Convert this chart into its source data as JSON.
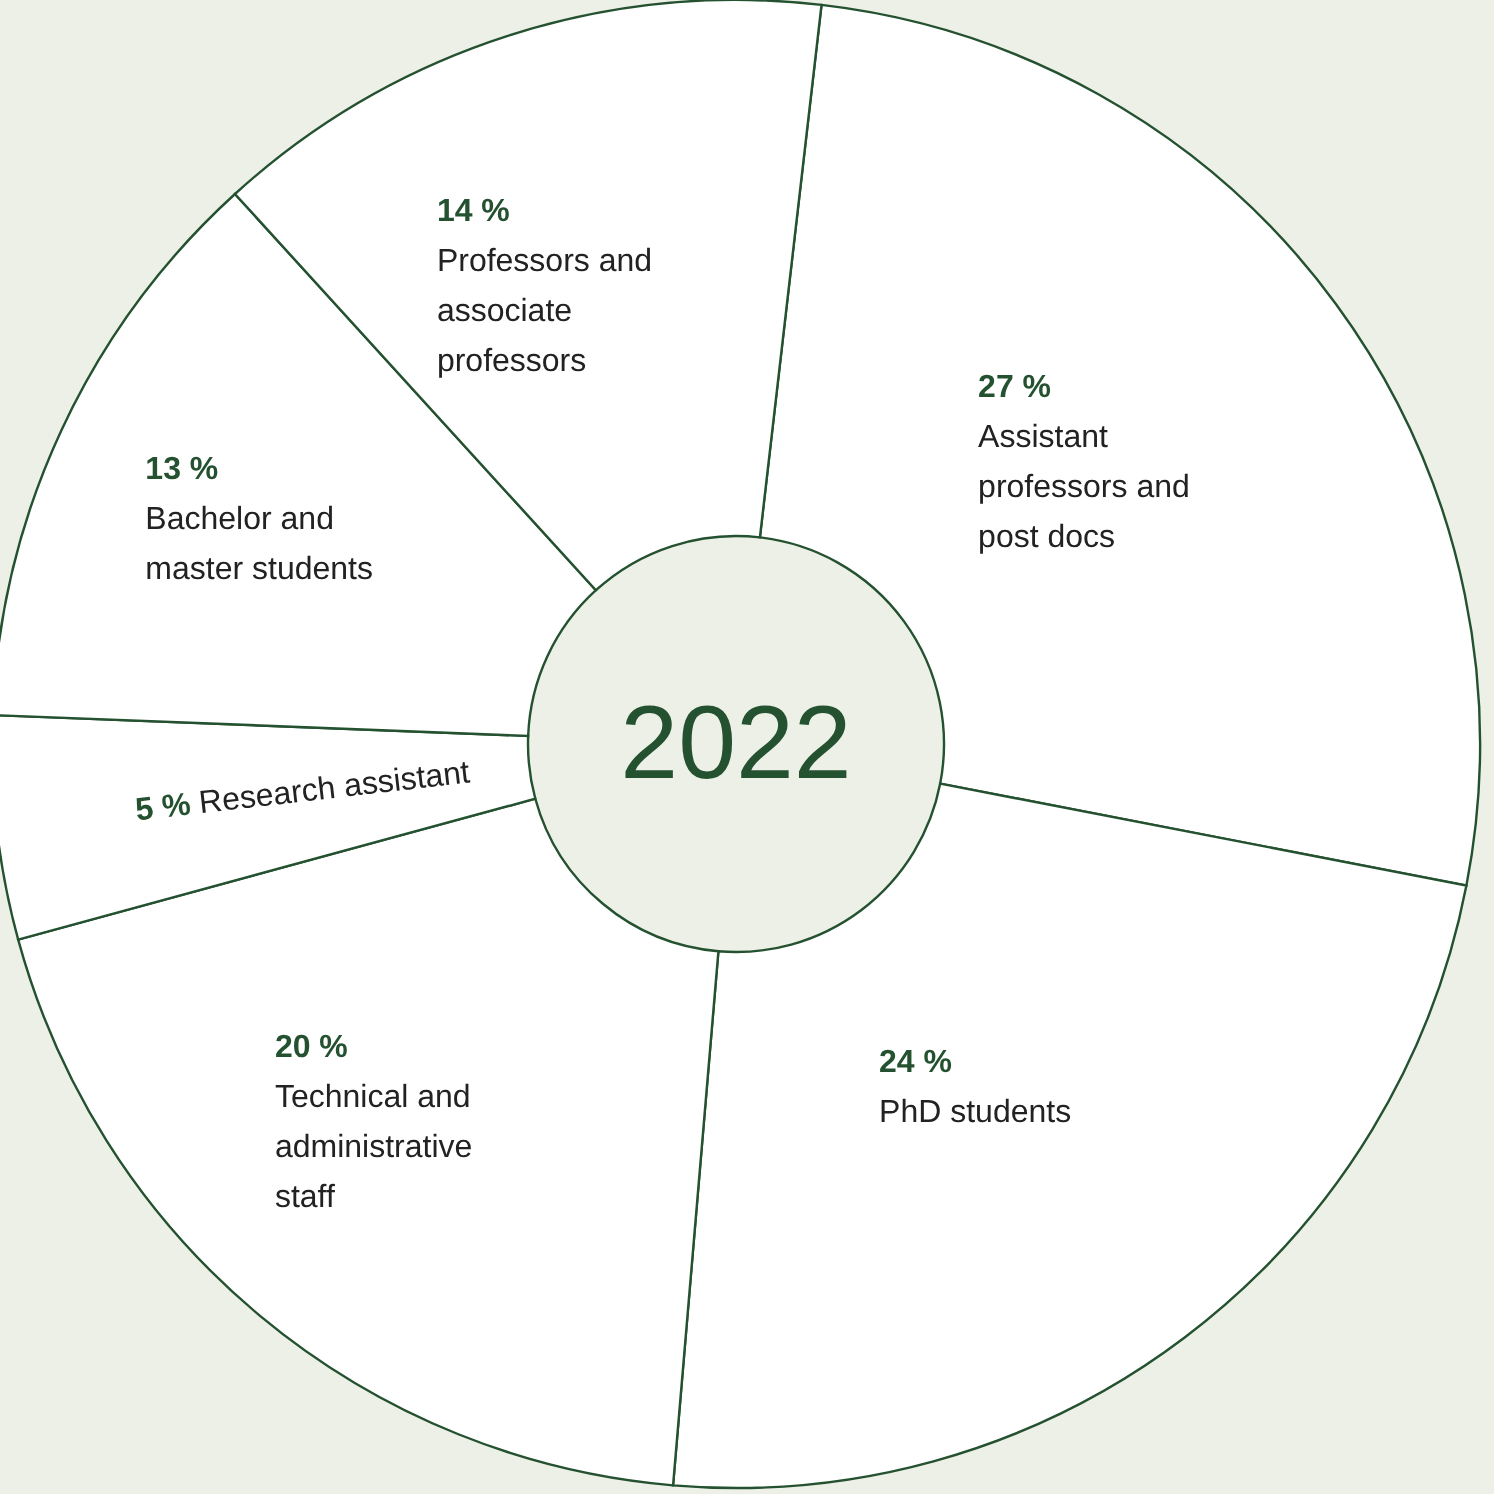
{
  "chart_data": {
    "type": "donut",
    "title": "2022",
    "categories": [
      "Assistant professors and post docs",
      "PhD students",
      "Technical and administrative staff",
      "Research assistant",
      "Bachelor and master students",
      "Professors and associate professors"
    ],
    "values": [
      27,
      24,
      20,
      5,
      13,
      14
    ],
    "value_labels": [
      "27 %",
      "24 %",
      "20 %",
      "5 %",
      "13 %",
      "14 %"
    ],
    "colors": [
      "#ffffff",
      "#ffffff",
      "#ffffff",
      "#ffffff",
      "#ffffff",
      "#ffffff"
    ],
    "legend": false
  }
}
